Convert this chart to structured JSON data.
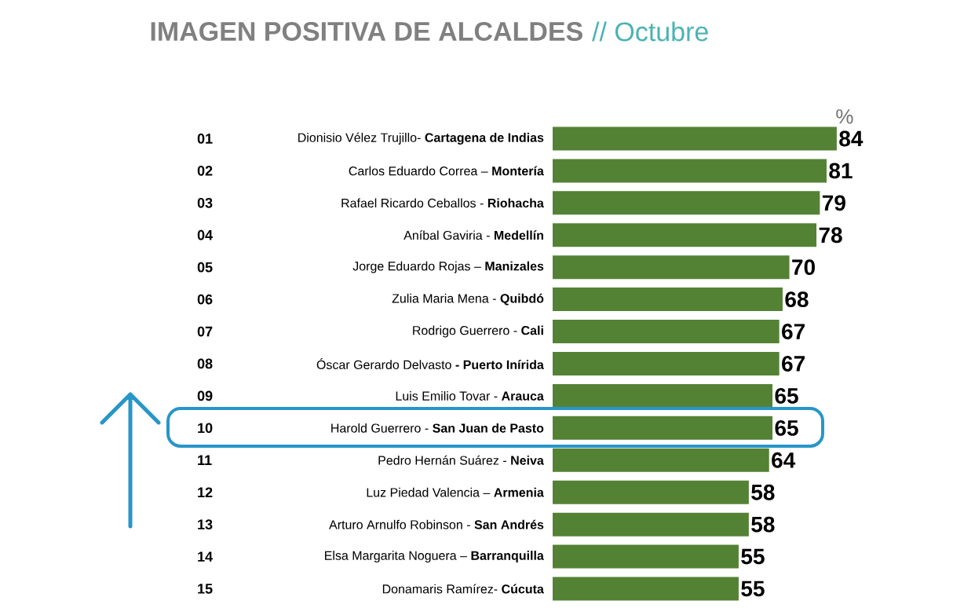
{
  "chart_data": {
    "type": "bar",
    "orientation": "horizontal",
    "title": "IMAGEN POSITIVA DE ALCALDES",
    "subtitle": "// Octubre",
    "xlabel": "%",
    "categories": [
      "Dionisio Vélez Trujillo- **Cartagena de Indias**",
      "Carlos Eduardo Correa – **Montería**",
      "Rafael Ricardo Ceballos - **Riohacha**",
      "Aníbal Gaviria - **Medellín**",
      "Jorge Eduardo Rojas – **Manizales**",
      "Zulia Maria Mena - **Quibdó**",
      "Rodrigo Guerrero - **Cali**",
      "Óscar Gerardo Delvasto **- Puerto Inírida**",
      "Luis Emilio Tovar - **Arauca**",
      "Harold Guerrero - **San Juan de Pasto**",
      "Pedro Hernán Suárez - **Neiva**",
      "Luz Piedad Valencia – **Armenia**",
      "Arturo Arnulfo Robinson - **San Andrés**",
      "Elsa Margarita Noguera – **Barranquilla**",
      "Donamaris Ramírez- **Cúcuta**"
    ],
    "values": [
      84,
      81,
      79,
      78,
      70,
      68,
      67,
      67,
      65,
      65,
      64,
      58,
      58,
      55,
      55
    ],
    "color": "#548235",
    "data_labels": true,
    "annotations": [
      "01",
      "02",
      "03",
      "04",
      "05",
      "06",
      "07",
      "08",
      "09",
      "10",
      "11",
      "12",
      "13",
      "14",
      "15"
    ]
  }
}
